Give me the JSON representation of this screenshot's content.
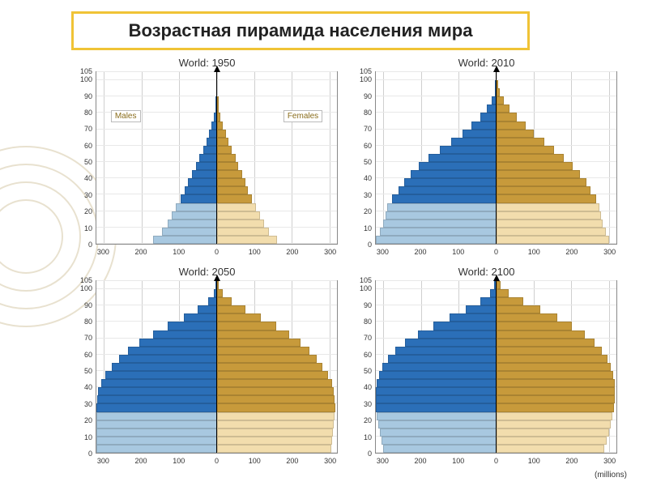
{
  "title": "Возрастная пирамида населения мира",
  "x_axis_label": "(millions)",
  "legend": {
    "male": "Males",
    "female": "Females",
    "male_color_light": "#a8c8e0",
    "male_color_dark": "#2b6fb8",
    "female_color_light": "#f2ddad",
    "female_color_dark": "#c79a3b"
  },
  "axes": {
    "y_ticks": [
      0,
      10,
      20,
      30,
      40,
      50,
      60,
      70,
      80,
      90,
      100,
      105
    ],
    "y_max": 105,
    "x_ticks": [
      300,
      200,
      100,
      0,
      100,
      200,
      300
    ],
    "x_max": 320
  },
  "colors": {
    "grid": "#cfcfcf",
    "border": "#888",
    "bg": "#ffffff"
  },
  "panels": [
    {
      "title": "World: 1950",
      "show_legend": true,
      "bars": [
        {
          "a": 0,
          "m": 170,
          "f": 160
        },
        {
          "a": 5,
          "m": 145,
          "f": 138
        },
        {
          "a": 10,
          "m": 130,
          "f": 125
        },
        {
          "a": 15,
          "m": 120,
          "f": 115
        },
        {
          "a": 20,
          "m": 108,
          "f": 104
        },
        {
          "a": 25,
          "m": 96,
          "f": 94
        },
        {
          "a": 30,
          "m": 85,
          "f": 84
        },
        {
          "a": 35,
          "m": 76,
          "f": 76
        },
        {
          "a": 40,
          "m": 66,
          "f": 68
        },
        {
          "a": 45,
          "m": 56,
          "f": 58
        },
        {
          "a": 50,
          "m": 46,
          "f": 50
        },
        {
          "a": 55,
          "m": 36,
          "f": 40
        },
        {
          "a": 60,
          "m": 28,
          "f": 32
        },
        {
          "a": 65,
          "m": 20,
          "f": 24
        },
        {
          "a": 70,
          "m": 13,
          "f": 16
        },
        {
          "a": 75,
          "m": 7,
          "f": 10
        },
        {
          "a": 80,
          "m": 3,
          "f": 5
        },
        {
          "a": 85,
          "m": 1,
          "f": 2
        }
      ]
    },
    {
      "title": "World: 2010",
      "show_legend": false,
      "bars": [
        {
          "a": 0,
          "m": 320,
          "f": 300
        },
        {
          "a": 5,
          "m": 310,
          "f": 292
        },
        {
          "a": 10,
          "m": 300,
          "f": 284
        },
        {
          "a": 15,
          "m": 295,
          "f": 278
        },
        {
          "a": 20,
          "m": 290,
          "f": 275
        },
        {
          "a": 25,
          "m": 278,
          "f": 266
        },
        {
          "a": 30,
          "m": 260,
          "f": 252
        },
        {
          "a": 35,
          "m": 245,
          "f": 240
        },
        {
          "a": 40,
          "m": 228,
          "f": 224
        },
        {
          "a": 45,
          "m": 205,
          "f": 203
        },
        {
          "a": 50,
          "m": 180,
          "f": 180
        },
        {
          "a": 55,
          "m": 150,
          "f": 154
        },
        {
          "a": 60,
          "m": 120,
          "f": 128
        },
        {
          "a": 65,
          "m": 90,
          "f": 100
        },
        {
          "a": 70,
          "m": 65,
          "f": 78
        },
        {
          "a": 75,
          "m": 42,
          "f": 56
        },
        {
          "a": 80,
          "m": 24,
          "f": 36
        },
        {
          "a": 85,
          "m": 11,
          "f": 20
        },
        {
          "a": 90,
          "m": 4,
          "f": 9
        },
        {
          "a": 95,
          "m": 1,
          "f": 3
        }
      ]
    },
    {
      "title": "World: 2050",
      "show_legend": false,
      "bars": [
        {
          "a": 0,
          "m": 320,
          "f": 305
        },
        {
          "a": 5,
          "m": 320,
          "f": 308
        },
        {
          "a": 10,
          "m": 320,
          "f": 310
        },
        {
          "a": 15,
          "m": 320,
          "f": 312
        },
        {
          "a": 20,
          "m": 320,
          "f": 314
        },
        {
          "a": 25,
          "m": 320,
          "f": 315
        },
        {
          "a": 30,
          "m": 318,
          "f": 314
        },
        {
          "a": 35,
          "m": 315,
          "f": 312
        },
        {
          "a": 40,
          "m": 308,
          "f": 306
        },
        {
          "a": 45,
          "m": 296,
          "f": 296
        },
        {
          "a": 50,
          "m": 280,
          "f": 282
        },
        {
          "a": 55,
          "m": 260,
          "f": 266
        },
        {
          "a": 60,
          "m": 236,
          "f": 246
        },
        {
          "a": 65,
          "m": 206,
          "f": 222
        },
        {
          "a": 70,
          "m": 170,
          "f": 192
        },
        {
          "a": 75,
          "m": 130,
          "f": 158
        },
        {
          "a": 80,
          "m": 88,
          "f": 118
        },
        {
          "a": 85,
          "m": 50,
          "f": 76
        },
        {
          "a": 90,
          "m": 22,
          "f": 40
        },
        {
          "a": 95,
          "m": 8,
          "f": 16
        },
        {
          "a": 100,
          "m": 2,
          "f": 5
        }
      ]
    },
    {
      "title": "World: 2100",
      "show_legend": false,
      "bars": [
        {
          "a": 0,
          "m": 300,
          "f": 288
        },
        {
          "a": 5,
          "m": 305,
          "f": 294
        },
        {
          "a": 10,
          "m": 310,
          "f": 300
        },
        {
          "a": 15,
          "m": 314,
          "f": 304
        },
        {
          "a": 20,
          "m": 318,
          "f": 310
        },
        {
          "a": 25,
          "m": 320,
          "f": 314
        },
        {
          "a": 30,
          "m": 320,
          "f": 315
        },
        {
          "a": 35,
          "m": 320,
          "f": 316
        },
        {
          "a": 40,
          "m": 318,
          "f": 316
        },
        {
          "a": 45,
          "m": 312,
          "f": 312
        },
        {
          "a": 50,
          "m": 302,
          "f": 305
        },
        {
          "a": 55,
          "m": 288,
          "f": 296
        },
        {
          "a": 60,
          "m": 268,
          "f": 282
        },
        {
          "a": 65,
          "m": 242,
          "f": 262
        },
        {
          "a": 70,
          "m": 208,
          "f": 236
        },
        {
          "a": 75,
          "m": 168,
          "f": 202
        },
        {
          "a": 80,
          "m": 124,
          "f": 162
        },
        {
          "a": 85,
          "m": 80,
          "f": 118
        },
        {
          "a": 90,
          "m": 42,
          "f": 72
        },
        {
          "a": 95,
          "m": 16,
          "f": 34
        },
        {
          "a": 100,
          "m": 5,
          "f": 12
        }
      ]
    }
  ]
}
